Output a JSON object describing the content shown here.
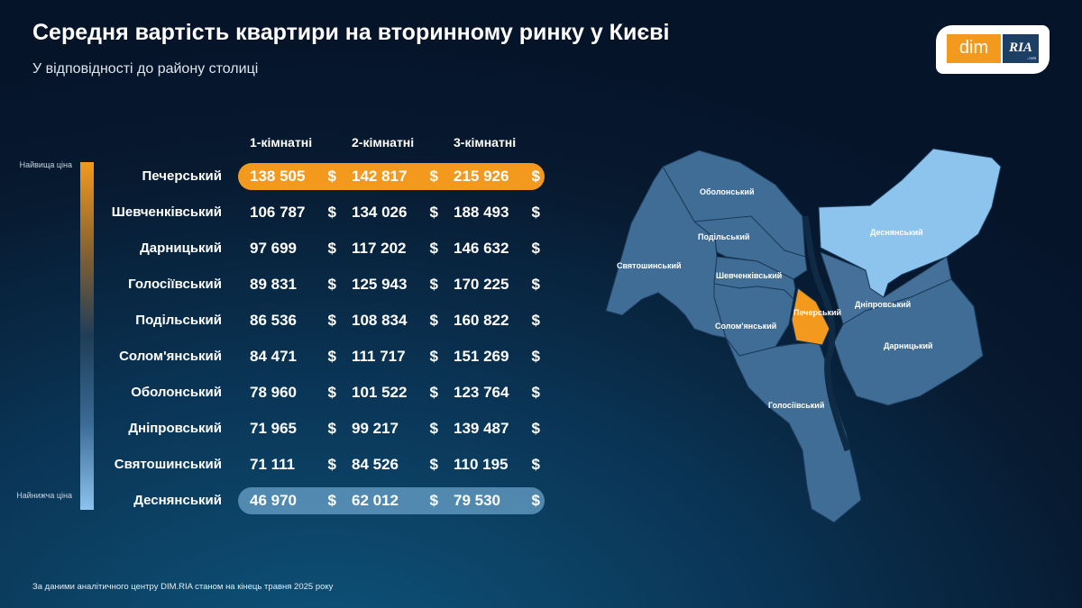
{
  "header": {
    "title": "Середня вартість квартири на вторинному ринку у Києві",
    "subtitle": "У відповідності до району столиці"
  },
  "logo": {
    "left": "dim",
    "right": "RIA",
    "suffix": ".com"
  },
  "legend": {
    "high": "Найвища ціна",
    "low": "Найнижча ціна",
    "high_color": "#f39a1e",
    "low_color": "#8cc4ee"
  },
  "table": {
    "columns": [
      "1-кімнатні",
      "2-кімнатні",
      "3-кімнатні"
    ],
    "currency": "$",
    "rows": [
      {
        "district": "Печерський",
        "values": [
          "138 505",
          "142 817",
          "215 926"
        ],
        "highlight": "highest"
      },
      {
        "district": "Шевченківський",
        "values": [
          "106 787",
          "134 026",
          "188 493"
        ]
      },
      {
        "district": "Дарницький",
        "values": [
          "97 699",
          "117 202",
          "146 632"
        ]
      },
      {
        "district": "Голосіївський",
        "values": [
          "89 831",
          "125 943",
          "170 225"
        ]
      },
      {
        "district": "Подільський",
        "values": [
          "86 536",
          "108 834",
          "160 822"
        ]
      },
      {
        "district": "Солом'янський",
        "values": [
          "84 471",
          "111 717",
          "151 269"
        ]
      },
      {
        "district": "Оболонський",
        "values": [
          "78 960",
          "101 522",
          "123 764"
        ]
      },
      {
        "district": "Дніпровський",
        "values": [
          "71 965",
          "99 217",
          "139 487"
        ]
      },
      {
        "district": "Святошинський",
        "values": [
          "71 111",
          "84 526",
          "110 195"
        ]
      },
      {
        "district": "Деснянський",
        "values": [
          "46 970",
          "62 012",
          "79 530"
        ],
        "highlight": "lowest"
      }
    ]
  },
  "map": {
    "labels": {
      "obolon": "Оболонський",
      "podil": "Подільський",
      "sviatoshyn": "Святошинський",
      "shevchenko": "Шевченківський",
      "solomyan": "Солом'янський",
      "pechersk": "Печерський",
      "desna": "Деснянський",
      "dnipro": "Дніпровський",
      "darnytsia": "Дарницький",
      "holosiiv": "Голосіївський"
    }
  },
  "footer": "За даними аналітичного центру DIM.RIA станом на кінець травня 2025 року"
}
